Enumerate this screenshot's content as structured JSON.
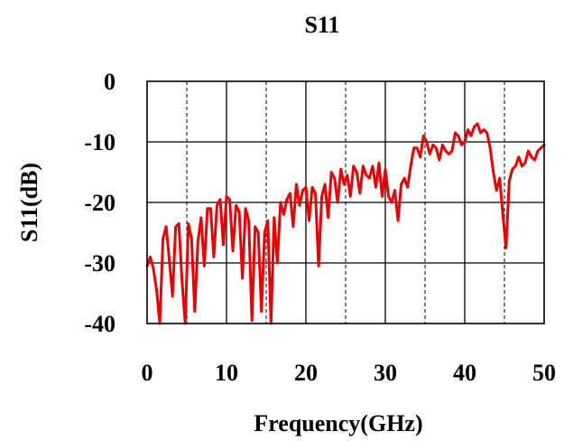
{
  "chart_data": {
    "type": "line",
    "title": "S11",
    "xlabel": "Frequency(GHz)",
    "ylabel": "S11(dB)",
    "xlim": [
      0,
      50
    ],
    "ylim": [
      -40,
      0
    ],
    "x_ticks": [
      0,
      10,
      20,
      30,
      40,
      50
    ],
    "y_ticks": [
      0,
      -10,
      -20,
      -30,
      -40
    ],
    "x_tick_labels": [
      "0",
      "10",
      "20",
      "30",
      "40",
      "50"
    ],
    "y_tick_labels": [
      "0",
      "-10",
      "-20",
      "-30",
      "-40"
    ],
    "grid": {
      "solid_x": [
        10,
        20,
        30,
        40
      ],
      "dashed_x": [
        5,
        15,
        25,
        35,
        45
      ],
      "solid_y": [
        -10,
        -20,
        -30
      ]
    },
    "legend": "none",
    "line_color": "#ee0000",
    "series": [
      {
        "x": [
          0.0,
          0.4,
          0.8,
          1.2,
          1.6,
          2.0,
          2.4,
          2.8,
          3.2,
          3.6,
          4.0,
          4.4,
          4.8,
          5.2,
          5.6,
          6.0,
          6.4,
          6.8,
          7.2,
          7.6,
          8.0,
          8.4,
          8.8,
          9.2,
          9.6,
          10.0,
          10.4,
          10.8,
          11.2,
          11.6,
          12.0,
          12.4,
          12.8,
          13.2,
          13.6,
          14.0,
          14.4,
          14.8,
          15.2,
          15.6,
          16.0,
          16.4,
          16.8,
          17.2,
          17.6,
          18.0,
          18.4,
          18.8,
          19.2,
          19.6,
          20.0,
          20.4,
          20.8,
          21.2,
          21.6,
          22.0,
          22.4,
          22.8,
          23.2,
          23.6,
          24.0,
          24.4,
          24.8,
          25.2,
          25.6,
          26.0,
          26.4,
          26.8,
          27.2,
          27.6,
          28.0,
          28.4,
          28.8,
          29.2,
          29.6,
          30.0,
          30.4,
          30.8,
          31.2,
          31.6,
          32.0,
          32.4,
          32.8,
          33.2,
          33.6,
          34.0,
          34.4,
          34.8,
          35.2,
          35.6,
          36.0,
          36.4,
          36.8,
          37.2,
          37.6,
          38.0,
          38.4,
          38.8,
          39.2,
          39.6,
          40.0,
          40.4,
          40.8,
          41.2,
          41.6,
          42.0,
          42.4,
          42.8,
          43.2,
          43.6,
          44.0,
          44.4,
          44.8,
          45.2,
          45.6,
          46.0,
          46.4,
          46.8,
          47.2,
          47.6,
          48.0,
          48.4,
          48.8,
          49.2,
          49.6,
          50.0
        ],
        "y": [
          -30.5,
          -29.0,
          -31.0,
          -34.5,
          -40.0,
          -26.0,
          -24.0,
          -29.5,
          -35.5,
          -24.0,
          -23.5,
          -33.0,
          -40.0,
          -23.5,
          -26.0,
          -38.0,
          -26.5,
          -22.5,
          -30.5,
          -21.0,
          -21.0,
          -29.0,
          -20.5,
          -19.5,
          -27.0,
          -19.0,
          -19.5,
          -28.0,
          -20.5,
          -21.5,
          -32.5,
          -21.0,
          -23.0,
          -39.5,
          -24.0,
          -25.0,
          -38.0,
          -25.0,
          -23.0,
          -40.0,
          -22.5,
          -30.0,
          -20.0,
          -22.0,
          -19.5,
          -18.5,
          -24.0,
          -17.0,
          -20.5,
          -18.0,
          -17.5,
          -23.0,
          -17.5,
          -18.5,
          -30.5,
          -19.0,
          -17.0,
          -22.5,
          -15.0,
          -16.0,
          -20.0,
          -14.5,
          -17.0,
          -15.5,
          -19.0,
          -14.0,
          -15.0,
          -18.5,
          -14.0,
          -15.5,
          -16.0,
          -14.0,
          -17.5,
          -13.5,
          -19.0,
          -14.5,
          -19.0,
          -20.0,
          -18.0,
          -23.0,
          -17.0,
          -16.0,
          -17.5,
          -14.0,
          -11.0,
          -11.0,
          -12.5,
          -9.0,
          -10.0,
          -12.0,
          -10.5,
          -11.0,
          -13.0,
          -10.5,
          -11.5,
          -12.0,
          -11.5,
          -8.5,
          -9.0,
          -10.5,
          -10.0,
          -8.0,
          -9.0,
          -7.5,
          -7.0,
          -8.5,
          -8.0,
          -8.5,
          -11.0,
          -15.0,
          -18.0,
          -16.0,
          -22.0,
          -27.5,
          -16.5,
          -14.5,
          -14.0,
          -12.5,
          -14.0,
          -13.5,
          -11.5,
          -12.5,
          -13.0,
          -11.5,
          -11.0,
          -10.5
        ]
      }
    ]
  }
}
